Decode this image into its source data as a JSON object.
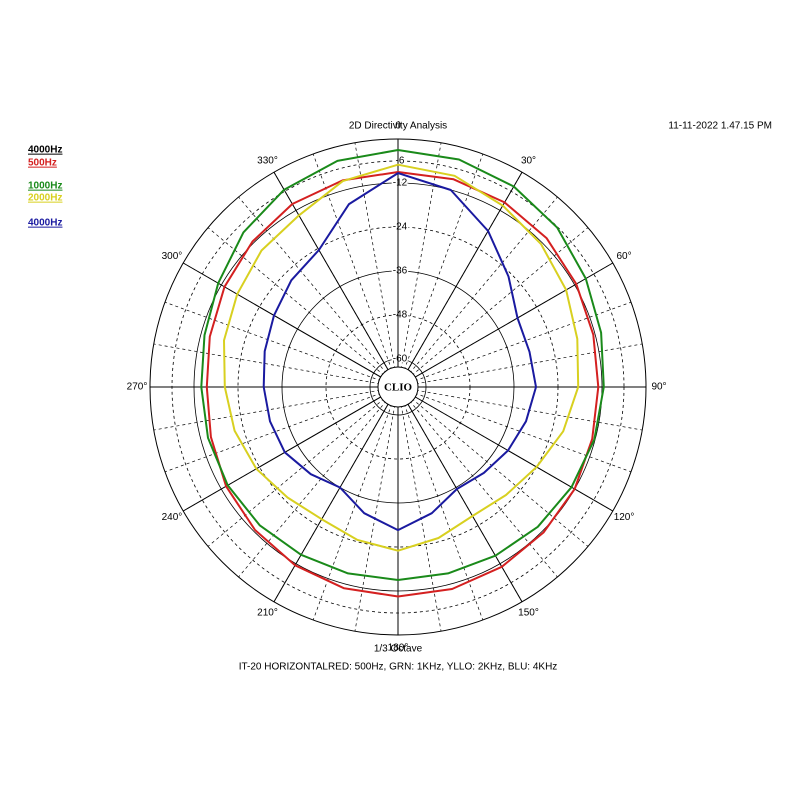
{
  "chart_data": {
    "type": "polar",
    "title": "2D Directivity Analysis",
    "timestamp": "11-11-2022 1.47.15 PM",
    "x_label": "1/3 Octave",
    "caption": "IT-20 HORIZONTALRED: 500Hz, GRN: 1KHz, YLLO: 2KHz, BLU: 4KHz",
    "center_label": "CLIO",
    "legend_title": "4000Hz",
    "rlim": [
      -66,
      0
    ],
    "rticks": [
      -6,
      -12,
      -24,
      -36,
      -48,
      -60
    ],
    "thetaticks": [
      0,
      {
        "value": 30,
        "label": "30°"
      },
      {
        "value": 60,
        "label": "60°"
      },
      {
        "value": 90,
        "label": "90°"
      },
      {
        "value": 120,
        "label": "120°"
      },
      {
        "value": 150,
        "label": "150°"
      },
      {
        "value": 180,
        "label": "180°"
      },
      {
        "value": 210,
        "label": "210°"
      },
      {
        "value": 240,
        "label": "240°"
      },
      {
        "value": 270,
        "label": "270°"
      },
      {
        "value": 300,
        "label": "300°"
      },
      {
        "value": 330,
        "label": "330°"
      }
    ],
    "minor_spoke_step": 10,
    "theta": [
      0,
      15,
      30,
      45,
      60,
      75,
      90,
      105,
      120,
      135,
      150,
      165,
      180,
      195,
      210,
      225,
      240,
      255,
      270,
      285,
      300,
      315,
      330,
      345
    ],
    "series": [
      {
        "name": "500Hz",
        "color": "#d42020",
        "values": [
          -9,
          -9,
          -9.5,
          -10.3,
          -11.5,
          -12.5,
          -13,
          -12.8,
          -12,
          -11.5,
          -11,
          -10.6,
          -10.5,
          -10.8,
          -11.5,
          -12.5,
          -13.5,
          -14.8,
          -15.5,
          -14.5,
          -13,
          -11.5,
          -10,
          -9.3
        ]
      },
      {
        "name": "1000Hz",
        "color": "#1a8a1a",
        "values": [
          -3,
          -3.4,
          -4.5,
          -6.2,
          -8.5,
          -10.3,
          -11.5,
          -12.2,
          -13,
          -13.7,
          -14.5,
          -15,
          -15,
          -15,
          -14.8,
          -14.3,
          -14,
          -14,
          -14,
          -13,
          -11,
          -8,
          -5.5,
          -3.8
        ]
      },
      {
        "name": "2000Hz",
        "color": "#d8d020",
        "values": [
          -7,
          -8,
          -10.5,
          -12.5,
          -14.7,
          -17,
          -18.5,
          -21,
          -24,
          -26,
          -27,
          -25,
          -23,
          -24.5,
          -26,
          -25,
          -23,
          -21.5,
          -20.4,
          -18.5,
          -17,
          -15,
          -13.6,
          -9.5
        ]
      },
      {
        "name": "4000Hz",
        "color": "#1a1aa0",
        "values": [
          -9.3,
          -12,
          -18.5,
          -25,
          -30,
          -30.5,
          -30,
          -31.5,
          -33,
          -34.5,
          -35.5,
          -32,
          -28.6,
          -32,
          -36,
          -34,
          -32,
          -31.5,
          -31,
          -30,
          -28.6,
          -26.5,
          -24.5,
          -16
        ]
      }
    ]
  }
}
